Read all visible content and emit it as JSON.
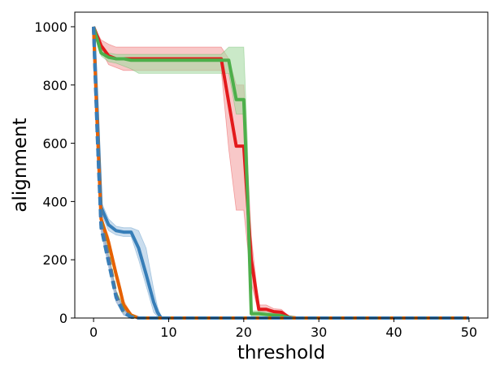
{
  "chart_data": {
    "type": "line",
    "title": "",
    "xlabel": "threshold",
    "ylabel": "alignment",
    "xlim": [
      -2.5,
      52.5
    ],
    "ylim": [
      0,
      1050
    ],
    "xticks": [
      0,
      10,
      20,
      30,
      40,
      50
    ],
    "yticks": [
      0,
      200,
      400,
      600,
      800,
      1000
    ],
    "grid": false,
    "legend": "none",
    "series": [
      {
        "color": "#e31a1c",
        "line_style": "solid",
        "band_color": "#f4a3a3",
        "x": [
          0,
          1,
          2,
          3,
          4,
          5,
          6,
          7,
          8,
          9,
          10,
          11,
          12,
          13,
          14,
          15,
          16,
          17,
          18,
          19,
          20,
          21,
          22,
          23,
          24,
          25,
          26,
          27,
          30,
          35,
          40,
          45,
          50
        ],
        "y": [
          1000,
          935,
          900,
          890,
          890,
          890,
          890,
          890,
          890,
          890,
          890,
          890,
          890,
          890,
          890,
          890,
          890,
          890,
          740,
          590,
          590,
          200,
          30,
          30,
          22,
          20,
          3,
          0,
          0,
          0,
          0,
          0,
          0
        ],
        "low": [
          1000,
          920,
          870,
          860,
          850,
          850,
          850,
          850,
          850,
          850,
          850,
          850,
          850,
          850,
          850,
          850,
          850,
          850,
          580,
          370,
          370,
          120,
          15,
          15,
          12,
          10,
          0,
          0,
          0,
          0,
          0,
          0,
          0
        ],
        "high": [
          1000,
          955,
          940,
          930,
          930,
          930,
          930,
          930,
          930,
          930,
          930,
          930,
          930,
          930,
          930,
          930,
          930,
          930,
          890,
          800,
          800,
          280,
          45,
          45,
          32,
          30,
          6,
          0,
          0,
          0,
          0,
          0,
          0
        ]
      },
      {
        "color": "#4daf4a",
        "line_style": "solid",
        "band_color": "#a6dba4",
        "x": [
          0,
          1,
          2,
          3,
          4,
          5,
          6,
          7,
          8,
          9,
          10,
          11,
          12,
          13,
          14,
          15,
          16,
          17,
          18,
          19,
          20,
          20.5,
          21,
          22,
          23,
          24,
          25,
          26,
          27,
          30,
          35,
          40,
          45,
          50
        ],
        "y": [
          1000,
          910,
          895,
          890,
          890,
          885,
          885,
          885,
          885,
          885,
          885,
          885,
          885,
          885,
          885,
          885,
          885,
          885,
          885,
          750,
          750,
          430,
          15,
          15,
          12,
          10,
          8,
          2,
          0,
          0,
          0,
          0,
          0,
          0
        ],
        "low": [
          1000,
          900,
          880,
          875,
          865,
          855,
          840,
          840,
          840,
          840,
          840,
          840,
          840,
          840,
          840,
          840,
          840,
          840,
          840,
          700,
          700,
          300,
          5,
          5,
          4,
          3,
          2,
          0,
          0,
          0,
          0,
          0,
          0,
          0
        ],
        "high": [
          1000,
          920,
          910,
          905,
          905,
          905,
          905,
          905,
          905,
          905,
          905,
          905,
          905,
          905,
          905,
          905,
          905,
          905,
          930,
          930,
          930,
          600,
          25,
          25,
          20,
          18,
          14,
          4,
          0,
          0,
          0,
          0,
          0,
          0
        ]
      },
      {
        "color": "#377eb8",
        "line_style": "solid",
        "band_color": "#a6c6e2",
        "x": [
          0,
          0.5,
          1,
          2,
          3,
          4,
          5,
          6,
          7,
          8,
          8.5,
          9,
          10,
          20,
          30,
          40,
          50
        ],
        "y": [
          1000,
          700,
          380,
          320,
          300,
          295,
          295,
          240,
          150,
          55,
          20,
          0,
          0,
          0,
          0,
          0,
          0
        ],
        "low": [
          1000,
          680,
          360,
          300,
          285,
          280,
          280,
          200,
          110,
          20,
          5,
          0,
          0,
          0,
          0,
          0,
          0
        ],
        "high": [
          1000,
          720,
          400,
          340,
          315,
          310,
          310,
          300,
          240,
          100,
          40,
          5,
          0,
          0,
          0,
          0,
          0
        ]
      },
      {
        "color": "#e66101",
        "line_style": "solid",
        "band_color": "#f6c08f",
        "x": [
          0,
          0.5,
          1,
          2,
          3,
          3.5,
          4,
          5,
          6,
          10,
          20,
          30,
          40,
          50
        ],
        "y": [
          1000,
          650,
          340,
          260,
          150,
          100,
          45,
          10,
          0,
          0,
          0,
          0,
          0,
          0
        ],
        "low": [
          1000,
          630,
          325,
          240,
          130,
          80,
          30,
          5,
          0,
          0,
          0,
          0,
          0,
          0
        ],
        "high": [
          1000,
          670,
          355,
          280,
          170,
          120,
          60,
          15,
          0,
          0,
          0,
          0,
          0,
          0
        ]
      },
      {
        "color": "#4daf4a",
        "line_style": "dashed",
        "band_color": "#a6dba4",
        "x": [
          0,
          0.5,
          1,
          2,
          3,
          4,
          5,
          6,
          10,
          20,
          30,
          40,
          50
        ],
        "y": [
          1000,
          640,
          330,
          210,
          80,
          25,
          5,
          0,
          0,
          0,
          0,
          0,
          0
        ],
        "low": [
          1000,
          620,
          315,
          190,
          65,
          15,
          2,
          0,
          0,
          0,
          0,
          0,
          0
        ],
        "high": [
          1000,
          660,
          345,
          230,
          95,
          35,
          8,
          0,
          0,
          0,
          0,
          0,
          0
        ]
      },
      {
        "color": "#984ea3",
        "line_style": "dashed",
        "band_color": "#cfb3d6",
        "x": [
          0,
          0.5,
          1,
          2,
          3,
          4,
          5,
          6,
          10,
          20,
          30,
          40,
          50
        ],
        "y": [
          1000,
          630,
          320,
          200,
          75,
          20,
          4,
          0,
          0,
          0,
          0,
          0,
          0
        ],
        "low": [
          1000,
          610,
          305,
          185,
          60,
          12,
          1,
          0,
          0,
          0,
          0,
          0,
          0
        ],
        "high": [
          1000,
          650,
          335,
          215,
          90,
          30,
          7,
          0,
          0,
          0,
          0,
          0,
          0
        ]
      },
      {
        "color": "#377eb8",
        "line_style": "dashed",
        "band_color": "#a6c6e2",
        "x": [
          0,
          0.5,
          1,
          2,
          3,
          4,
          5,
          6,
          10,
          20,
          30,
          40,
          50
        ],
        "y": [
          1000,
          620,
          310,
          190,
          70,
          18,
          3,
          0,
          0,
          0,
          0,
          0,
          0
        ],
        "low": [
          1000,
          600,
          295,
          175,
          55,
          10,
          1,
          0,
          0,
          0,
          0,
          0,
          0
        ],
        "high": [
          1000,
          640,
          325,
          205,
          85,
          28,
          6,
          0,
          0,
          0,
          0,
          0,
          0
        ]
      }
    ]
  }
}
